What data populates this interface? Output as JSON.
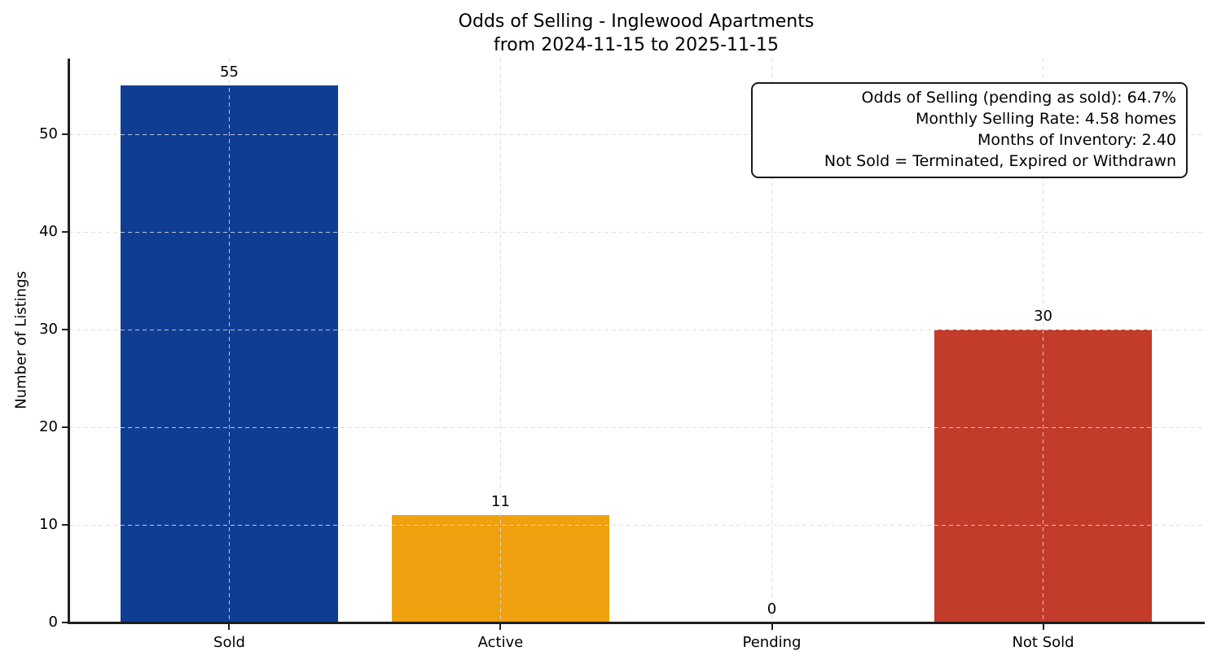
{
  "chart_data": {
    "type": "bar",
    "title_line1": "Odds of Selling - Inglewood Apartments",
    "title_line2": "from 2024-11-15 to 2025-11-15",
    "xlabel": "",
    "ylabel": "Number of Listings",
    "categories": [
      "Sold",
      "Active",
      "Pending",
      "Not Sold"
    ],
    "values": [
      55,
      11,
      0,
      30
    ],
    "bar_colors": [
      "#0f3d94",
      "#f0a110",
      null,
      "#c23b2b"
    ],
    "ylim": [
      0,
      57.75
    ],
    "yticks": [
      0,
      10,
      20,
      30,
      40,
      50
    ],
    "grid": "dashed, light gray, horizontal and vertical",
    "legend_position": "none",
    "annotation": {
      "lines": [
        "Odds of Selling (pending as sold): 64.7%",
        "Monthly Selling Rate: 4.58 homes",
        "Months of Inventory: 2.40",
        "Not Sold = Terminated, Expired or Withdrawn"
      ]
    }
  }
}
